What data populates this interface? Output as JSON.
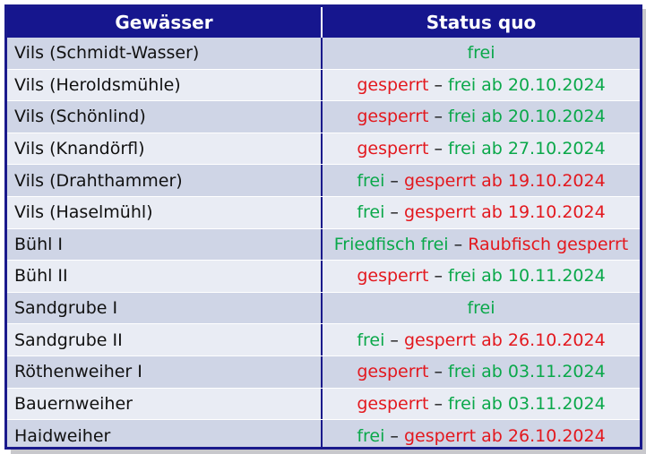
{
  "header": {
    "col1": "Gewässer",
    "col2": "Status quo"
  },
  "colors": {
    "frei": "#0aa84a",
    "gesperrt": "#e3181e",
    "header_bg": "#16168e"
  },
  "rows": [
    {
      "name": "Vils (Schmidt-Wasser)",
      "status": [
        {
          "text": "frei",
          "color": "green"
        }
      ]
    },
    {
      "name": "Vils (Heroldsmühle)",
      "status": [
        {
          "text": "gesperrt",
          "color": "red"
        },
        {
          "text": " – ",
          "color": "dash"
        },
        {
          "text": "frei ab 20.10.2024",
          "color": "green"
        }
      ]
    },
    {
      "name": "Vils (Schönlind)",
      "status": [
        {
          "text": "gesperrt",
          "color": "red"
        },
        {
          "text": " – ",
          "color": "dash"
        },
        {
          "text": "frei ab 20.10.2024",
          "color": "green"
        }
      ]
    },
    {
      "name": "Vils (Knandörfl)",
      "status": [
        {
          "text": "gesperrt",
          "color": "red"
        },
        {
          "text": " – ",
          "color": "dash"
        },
        {
          "text": "frei ab 27.10.2024",
          "color": "green"
        }
      ]
    },
    {
      "name": "Vils (Drahthammer)",
      "status": [
        {
          "text": "frei",
          "color": "green"
        },
        {
          "text": " – ",
          "color": "dash"
        },
        {
          "text": "gesperrt ab 19.10.2024",
          "color": "red"
        }
      ]
    },
    {
      "name": "Vils (Haselmühl)",
      "status": [
        {
          "text": "frei",
          "color": "green"
        },
        {
          "text": " – ",
          "color": "dash"
        },
        {
          "text": "gesperrt ab 19.10.2024",
          "color": "red"
        }
      ]
    },
    {
      "name": "Bühl I",
      "status": [
        {
          "text": "Friedfisch frei",
          "color": "green"
        },
        {
          "text": " – ",
          "color": "dash"
        },
        {
          "text": "Raubfisch gesperrt",
          "color": "red"
        }
      ]
    },
    {
      "name": "Bühl II",
      "status": [
        {
          "text": "gesperrt",
          "color": "red"
        },
        {
          "text": " – ",
          "color": "dash"
        },
        {
          "text": "frei ab 10.11.2024",
          "color": "green"
        }
      ]
    },
    {
      "name": "Sandgrube I",
      "status": [
        {
          "text": "frei",
          "color": "green"
        }
      ]
    },
    {
      "name": "Sandgrube II",
      "status": [
        {
          "text": "frei",
          "color": "green"
        },
        {
          "text": " – ",
          "color": "dash"
        },
        {
          "text": "gesperrt ab 26.10.2024",
          "color": "red"
        }
      ]
    },
    {
      "name": "Röthenweiher I",
      "status": [
        {
          "text": "gesperrt",
          "color": "red"
        },
        {
          "text": " – ",
          "color": "dash"
        },
        {
          "text": "frei ab 03.11.2024",
          "color": "green"
        }
      ]
    },
    {
      "name": "Bauernweiher",
      "status": [
        {
          "text": "gesperrt",
          "color": "red"
        },
        {
          "text": " – ",
          "color": "dash"
        },
        {
          "text": "frei ab 03.11.2024",
          "color": "green"
        }
      ]
    },
    {
      "name": "Haidweiher",
      "status": [
        {
          "text": "frei",
          "color": "green"
        },
        {
          "text": " – ",
          "color": "dash"
        },
        {
          "text": "gesperrt ab 26.10.2024",
          "color": "red"
        }
      ]
    }
  ]
}
